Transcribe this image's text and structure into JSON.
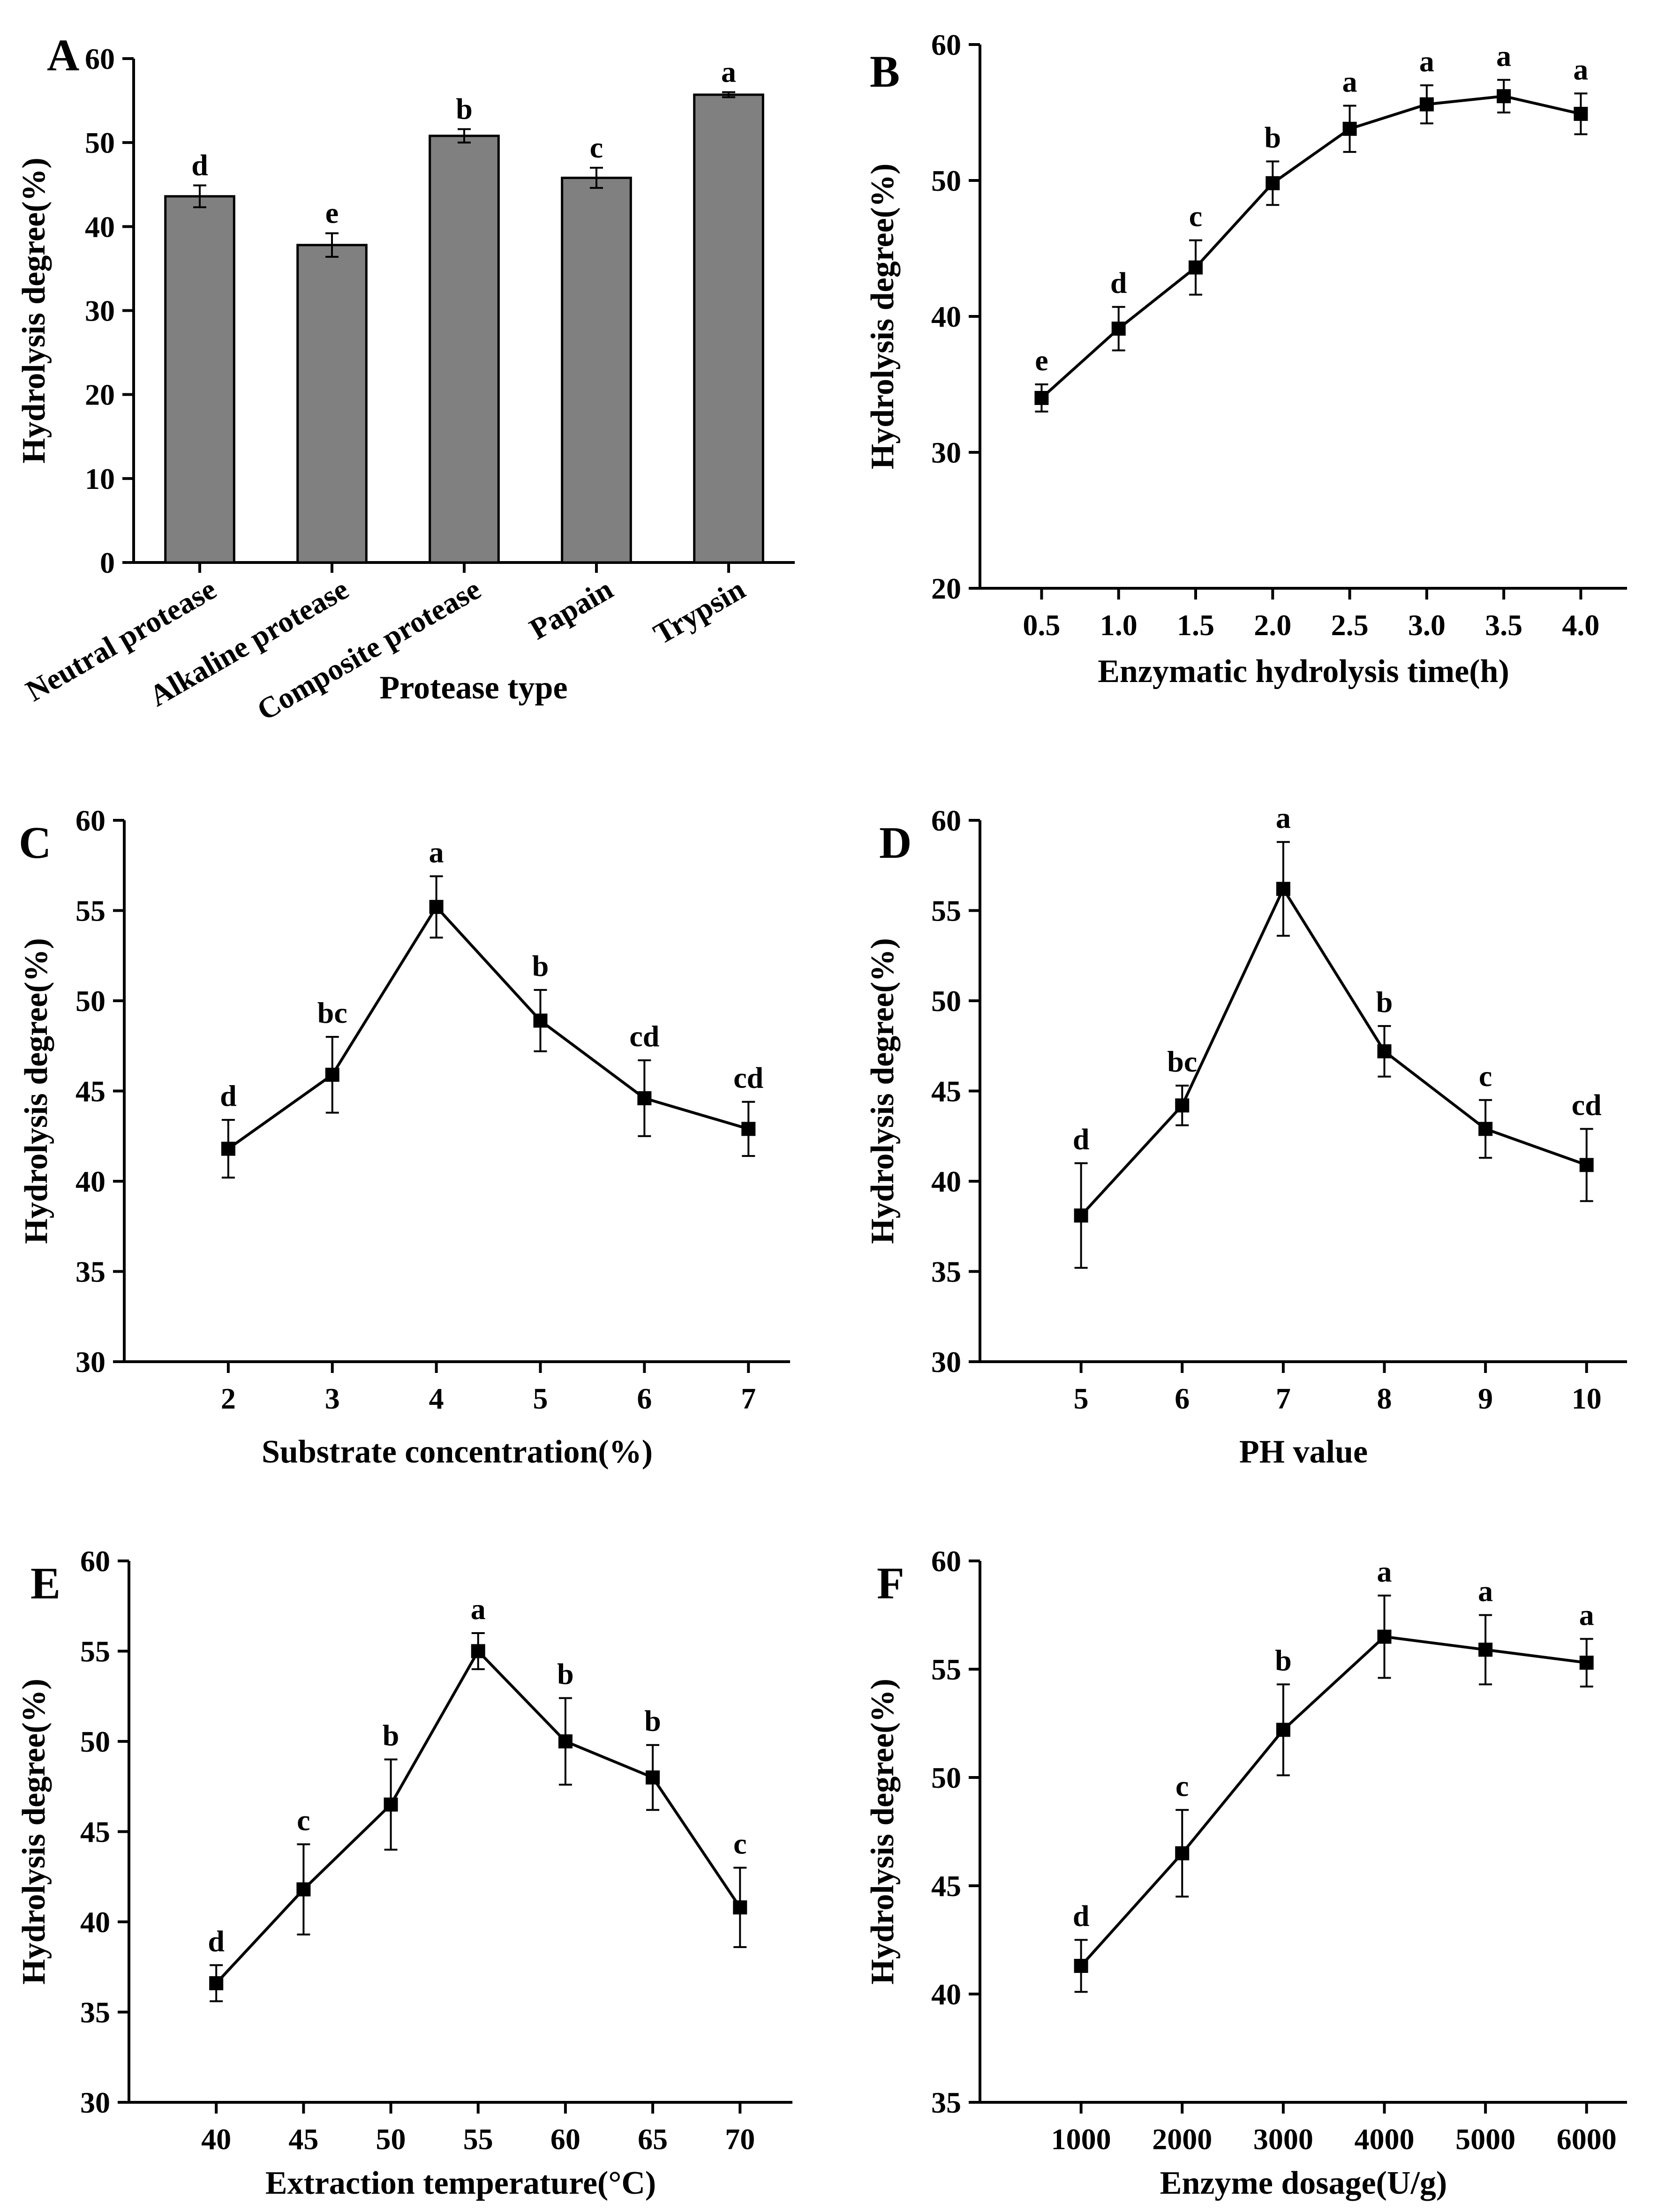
{
  "chart_data": [
    {
      "panel": "A",
      "type": "bar",
      "xlabel": "Protease type",
      "ylabel": "Hydrolysis degree(%)",
      "ylim": [
        0,
        60
      ],
      "yticks": [
        0,
        10,
        20,
        30,
        40,
        50,
        60
      ],
      "categories": [
        "Neutral protease",
        "Alkaline protease",
        "Composite protease",
        "Papain",
        "Trypsin"
      ],
      "values": [
        43.6,
        37.8,
        50.8,
        45.8,
        55.7
      ],
      "errors": [
        1.3,
        1.4,
        0.8,
        1.2,
        0.3
      ],
      "labels": [
        "d",
        "e",
        "b",
        "c",
        "a"
      ]
    },
    {
      "panel": "B",
      "type": "line",
      "xlabel": "Enzymatic hydrolysis time(h)",
      "ylabel": "Hydrolysis degree(%)",
      "ylim": [
        20,
        60
      ],
      "yticks": [
        20,
        30,
        40,
        50,
        60
      ],
      "xlim": [
        0.1,
        4.3
      ],
      "xticks": [
        "0.5",
        "1.0",
        "1.5",
        "2.0",
        "2.5",
        "3.0",
        "3.5",
        "4.0"
      ],
      "x": [
        0.5,
        1.0,
        1.5,
        2.0,
        2.5,
        3.0,
        3.5,
        4.0
      ],
      "y": [
        34.0,
        39.1,
        43.6,
        49.8,
        53.8,
        55.6,
        56.2,
        54.9
      ],
      "errors": [
        1.0,
        1.6,
        2.0,
        1.6,
        1.7,
        1.4,
        1.2,
        1.5
      ],
      "labels": [
        "e",
        "d",
        "c",
        "b",
        "a",
        "a",
        "a",
        "a"
      ]
    },
    {
      "panel": "C",
      "type": "line",
      "xlabel": "Substrate concentration(%)",
      "ylabel": "Hydrolysis degree(%)",
      "ylim": [
        30,
        60
      ],
      "yticks": [
        30,
        35,
        40,
        45,
        50,
        55,
        60
      ],
      "xlim": [
        1,
        7.4
      ],
      "xticks": [
        "2",
        "3",
        "4",
        "5",
        "6",
        "7"
      ],
      "x": [
        2,
        3,
        4,
        5,
        6,
        7
      ],
      "y": [
        41.8,
        45.9,
        55.2,
        48.9,
        44.6,
        42.9
      ],
      "errors": [
        1.6,
        2.1,
        1.7,
        1.7,
        2.1,
        1.5
      ],
      "labels": [
        "d",
        "bc",
        "a",
        "b",
        "cd",
        "cd"
      ]
    },
    {
      "panel": "D",
      "type": "line",
      "xlabel": "PH value",
      "ylabel": "Hydrolysis degree(%)",
      "ylim": [
        30,
        60
      ],
      "yticks": [
        30,
        35,
        40,
        45,
        50,
        55,
        60
      ],
      "xlim": [
        4,
        10.4
      ],
      "xticks": [
        "5",
        "6",
        "7",
        "8",
        "9",
        "10"
      ],
      "x": [
        5,
        6,
        7,
        8,
        9,
        10
      ],
      "y": [
        38.1,
        44.2,
        56.2,
        47.2,
        42.9,
        40.9
      ],
      "errors": [
        2.9,
        1.1,
        2.6,
        1.4,
        1.6,
        2.0
      ],
      "labels": [
        "d",
        "bc",
        "a",
        "b",
        "c",
        "cd"
      ]
    },
    {
      "panel": "E",
      "type": "line",
      "xlabel": "Extraction temperature(°C)",
      "ylabel": "Hydrolysis degree(%)",
      "ylim": [
        30,
        60
      ],
      "yticks": [
        30,
        35,
        40,
        45,
        50,
        55,
        60
      ],
      "xlim": [
        35,
        73
      ],
      "xticks": [
        "40",
        "45",
        "50",
        "55",
        "60",
        "65",
        "70"
      ],
      "x": [
        40,
        45,
        50,
        55,
        60,
        65,
        70
      ],
      "y": [
        36.6,
        41.8,
        46.5,
        55.0,
        50.0,
        48.0,
        40.8
      ],
      "errors": [
        1.0,
        2.5,
        2.5,
        1.0,
        2.4,
        1.8,
        2.2
      ],
      "labels": [
        "d",
        "c",
        "b",
        "a",
        "b",
        "b",
        "c"
      ]
    },
    {
      "panel": "F",
      "type": "line",
      "xlabel": "Enzyme dosage(U/g)",
      "ylabel": "Hydrolysis degree(%)",
      "ylim": [
        35,
        60
      ],
      "yticks": [
        35,
        40,
        45,
        50,
        55,
        60
      ],
      "xlim": [
        0,
        6400
      ],
      "xticks": [
        "1000",
        "2000",
        "3000",
        "4000",
        "5000",
        "6000"
      ],
      "x": [
        1000,
        2000,
        3000,
        4000,
        5000,
        6000
      ],
      "y": [
        41.3,
        46.5,
        52.2,
        56.5,
        55.9,
        55.3
      ],
      "errors": [
        1.2,
        2.0,
        2.1,
        1.9,
        1.6,
        1.1
      ],
      "labels": [
        "d",
        "c",
        "b",
        "a",
        "a",
        "a"
      ]
    }
  ]
}
